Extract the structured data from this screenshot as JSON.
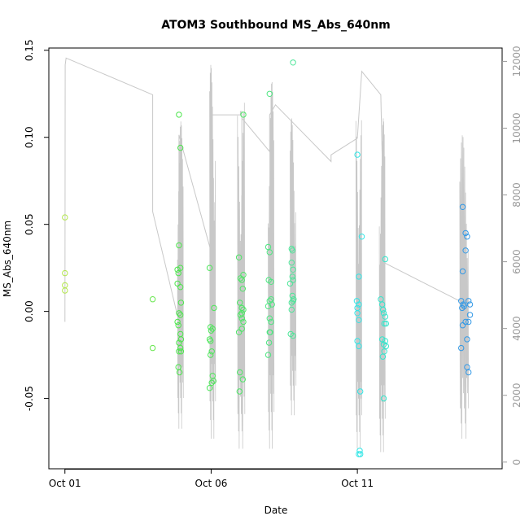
{
  "chart_data": {
    "type": "scatter",
    "title": "ATOM3 Southbound MS_Abs_640nm",
    "xlabel": "Date",
    "ylabel": "MS_Abs_640nm",
    "y2label": "",
    "x_start": "Oct 01",
    "xlim": [
      -0.55,
      14.95
    ],
    "ylim": [
      -0.0904,
      0.1513
    ],
    "y2lim": [
      -200,
      12400
    ],
    "x_ticks": [
      {
        "x": 0,
        "label": "Oct 01"
      },
      {
        "x": 5,
        "label": "Oct 06"
      },
      {
        "x": 10,
        "label": "Oct 11"
      }
    ],
    "y_ticks": [
      -0.05,
      0.0,
      0.05,
      0.1,
      0.15
    ],
    "y_tick_labels": [
      "-0.05",
      "0.00",
      "0.05",
      "0.10",
      "0.15"
    ],
    "y2_ticks": [
      0,
      2000,
      4000,
      6000,
      8000,
      10000,
      12000
    ],
    "y2_tick_labels": [
      "0",
      "2000",
      "4000",
      "6000",
      "8000",
      "10000",
      "12000"
    ],
    "grid": false,
    "legend": "none",
    "colors": {
      "axis": "#000000",
      "secondary_axis": "#9a9a9a",
      "altitude_line": "#c8c8c8",
      "point_start": "#b3e64d",
      "point_mid": "#4de64d",
      "point_cyan": "#33e6e6",
      "point_end": "#3399e6"
    },
    "series": [
      {
        "color": "#b3e64d",
        "points": [
          [
            0.0,
            0.054
          ],
          [
            0.0,
            0.022
          ],
          [
            0.0,
            0.015
          ],
          [
            0.0,
            0.012
          ]
        ]
      },
      {
        "color": "#66e64d",
        "points": [
          [
            3.0,
            0.007
          ],
          [
            3.0,
            -0.021
          ]
        ]
      },
      {
        "color": "#4de64d",
        "points": [
          [
            3.9,
            0.113
          ],
          [
            3.95,
            0.094
          ],
          [
            3.9,
            0.038
          ],
          [
            3.95,
            0.025
          ],
          [
            3.85,
            0.024
          ],
          [
            3.88,
            0.022
          ],
          [
            3.85,
            0.016
          ],
          [
            3.95,
            0.014
          ],
          [
            3.97,
            0.005
          ],
          [
            3.9,
            -0.001
          ],
          [
            3.95,
            -0.002
          ],
          [
            3.85,
            -0.006
          ],
          [
            3.88,
            -0.008
          ],
          [
            3.95,
            -0.013
          ],
          [
            3.97,
            -0.016
          ],
          [
            3.9,
            -0.018
          ],
          [
            3.95,
            -0.021
          ],
          [
            3.97,
            -0.023
          ],
          [
            3.9,
            -0.023
          ],
          [
            3.88,
            -0.032
          ],
          [
            3.92,
            -0.035
          ]
        ]
      },
      {
        "color": "#4de65a",
        "points": [
          [
            4.95,
            0.025
          ],
          [
            5.1,
            0.002
          ],
          [
            4.98,
            -0.009
          ],
          [
            5.05,
            -0.01
          ],
          [
            5.0,
            -0.011
          ],
          [
            4.95,
            -0.016
          ],
          [
            4.98,
            -0.017
          ],
          [
            5.02,
            -0.023
          ],
          [
            4.98,
            -0.025
          ],
          [
            5.05,
            -0.037
          ],
          [
            5.08,
            -0.04
          ],
          [
            5.02,
            -0.041
          ],
          [
            4.95,
            -0.044
          ]
        ]
      },
      {
        "color": "#4de666",
        "points": [
          [
            5.95,
            0.031
          ],
          [
            6.1,
            0.113
          ],
          [
            6.1,
            0.021
          ],
          [
            6.0,
            0.019
          ],
          [
            6.05,
            0.018
          ],
          [
            6.08,
            0.013
          ],
          [
            5.98,
            0.005
          ],
          [
            6.05,
            0.002
          ],
          [
            6.1,
            0.001
          ],
          [
            6.05,
            -0.001
          ],
          [
            6.0,
            -0.002
          ],
          [
            6.1,
            -0.006
          ],
          [
            6.05,
            -0.004
          ],
          [
            5.95,
            -0.012
          ],
          [
            6.05,
            -0.01
          ],
          [
            5.98,
            -0.035
          ],
          [
            6.08,
            -0.039
          ],
          [
            5.97,
            -0.046
          ]
        ]
      },
      {
        "color": "#4de680",
        "points": [
          [
            7.0,
            0.125
          ],
          [
            6.95,
            0.037
          ],
          [
            7.0,
            0.034
          ],
          [
            6.97,
            0.018
          ],
          [
            7.05,
            0.017
          ],
          [
            7.05,
            0.007
          ],
          [
            7.0,
            0.006
          ],
          [
            7.08,
            0.004
          ],
          [
            6.95,
            0.003
          ],
          [
            7.0,
            -0.004
          ],
          [
            7.05,
            -0.006
          ],
          [
            7.02,
            -0.012
          ],
          [
            7.0,
            -0.012
          ],
          [
            6.98,
            -0.018
          ],
          [
            6.95,
            -0.025
          ]
        ]
      },
      {
        "color": "#4de699",
        "points": [
          [
            7.8,
            0.143
          ],
          [
            7.75,
            0.036
          ],
          [
            7.78,
            0.035
          ],
          [
            7.75,
            0.028
          ],
          [
            7.8,
            0.024
          ],
          [
            7.78,
            0.02
          ],
          [
            7.8,
            0.018
          ],
          [
            7.7,
            0.016
          ],
          [
            7.78,
            0.009
          ],
          [
            7.82,
            0.007
          ],
          [
            7.75,
            0.005
          ],
          [
            7.8,
            0.006
          ],
          [
            7.75,
            0.001
          ],
          [
            7.72,
            -0.013
          ],
          [
            7.8,
            -0.014
          ]
        ]
      },
      {
        "color": "#33e6e6",
        "points": [
          [
            10.0,
            0.09
          ],
          [
            10.15,
            0.043
          ],
          [
            10.05,
            0.02
          ],
          [
            9.98,
            0.006
          ],
          [
            10.05,
            0.004
          ],
          [
            10.0,
            0.002
          ],
          [
            10.0,
            -0.001
          ],
          [
            10.05,
            -0.005
          ],
          [
            10.0,
            -0.017
          ],
          [
            10.05,
            -0.02
          ],
          [
            10.1,
            -0.046
          ],
          [
            10.08,
            -0.08
          ],
          [
            10.1,
            -0.082
          ],
          [
            10.05,
            -0.082
          ]
        ]
      },
      {
        "color": "#33e6cc",
        "points": [
          [
            10.95,
            0.03
          ],
          [
            10.8,
            0.007
          ],
          [
            10.85,
            0.004
          ],
          [
            10.88,
            0.001
          ],
          [
            10.9,
            -0.001
          ],
          [
            10.95,
            -0.003
          ],
          [
            10.92,
            -0.007
          ],
          [
            10.98,
            -0.007
          ],
          [
            10.85,
            -0.016
          ],
          [
            10.95,
            -0.017
          ],
          [
            10.9,
            -0.019
          ],
          [
            10.98,
            -0.02
          ],
          [
            10.92,
            -0.023
          ],
          [
            10.87,
            -0.026
          ],
          [
            10.9,
            -0.05
          ]
        ]
      },
      {
        "color": "#3399e6",
        "points": [
          [
            13.6,
            0.06
          ],
          [
            13.7,
            0.045
          ],
          [
            13.75,
            0.043
          ],
          [
            13.7,
            0.035
          ],
          [
            13.6,
            0.023
          ],
          [
            13.55,
            0.006
          ],
          [
            13.8,
            0.006
          ],
          [
            13.62,
            0.004
          ],
          [
            13.85,
            0.004
          ],
          [
            13.58,
            0.002
          ],
          [
            13.65,
            0.003
          ],
          [
            13.85,
            -0.002
          ],
          [
            13.7,
            -0.006
          ],
          [
            13.8,
            -0.006
          ],
          [
            13.6,
            -0.008
          ],
          [
            13.75,
            -0.016
          ],
          [
            13.55,
            -0.021
          ],
          [
            13.75,
            -0.032
          ],
          [
            13.8,
            -0.035
          ]
        ]
      }
    ],
    "altitude": {
      "path": [
        [
          0.0,
          4200
        ],
        [
          0.01,
          11900
        ],
        [
          0.04,
          12100
        ],
        [
          3.0,
          11000
        ],
        [
          3.0,
          10000
        ],
        [
          3.0,
          7500
        ],
        [
          3.9,
          4200
        ],
        [
          3.9,
          9800
        ],
        [
          5.0,
          6300
        ],
        [
          5.0,
          10400
        ],
        [
          5.05,
          10400
        ],
        [
          6.0,
          10400
        ],
        [
          6.0,
          10500
        ],
        [
          6.05,
          10500
        ],
        [
          6.05,
          4700
        ],
        [
          6.05,
          10500
        ],
        [
          6.05,
          10300
        ],
        [
          7.0,
          9300
        ],
        [
          7.0,
          10400
        ],
        [
          7.2,
          10700
        ],
        [
          9.1,
          9000
        ],
        [
          9.1,
          9200
        ],
        [
          10.0,
          9700
        ],
        [
          10.15,
          11700
        ],
        [
          10.8,
          11000
        ],
        [
          10.85,
          9000
        ],
        [
          10.85,
          6000
        ],
        [
          13.55,
          4800
        ]
      ],
      "bursts": [
        {
          "x0": 3.85,
          "x1": 4.05,
          "lo": 1000,
          "hi": 10200
        },
        {
          "x0": 4.95,
          "x1": 5.15,
          "lo": 700,
          "hi": 11900
        },
        {
          "x0": 5.9,
          "x1": 6.15,
          "lo": 400,
          "hi": 10800
        },
        {
          "x0": 6.95,
          "x1": 7.15,
          "lo": 400,
          "hi": 11400
        },
        {
          "x0": 7.7,
          "x1": 7.9,
          "lo": 1400,
          "hi": 10300
        },
        {
          "x0": 9.95,
          "x1": 10.15,
          "lo": 400,
          "hi": 10400
        },
        {
          "x0": 10.75,
          "x1": 10.95,
          "lo": 300,
          "hi": 10300
        },
        {
          "x0": 13.5,
          "x1": 13.8,
          "lo": 700,
          "hi": 9800
        }
      ]
    }
  }
}
